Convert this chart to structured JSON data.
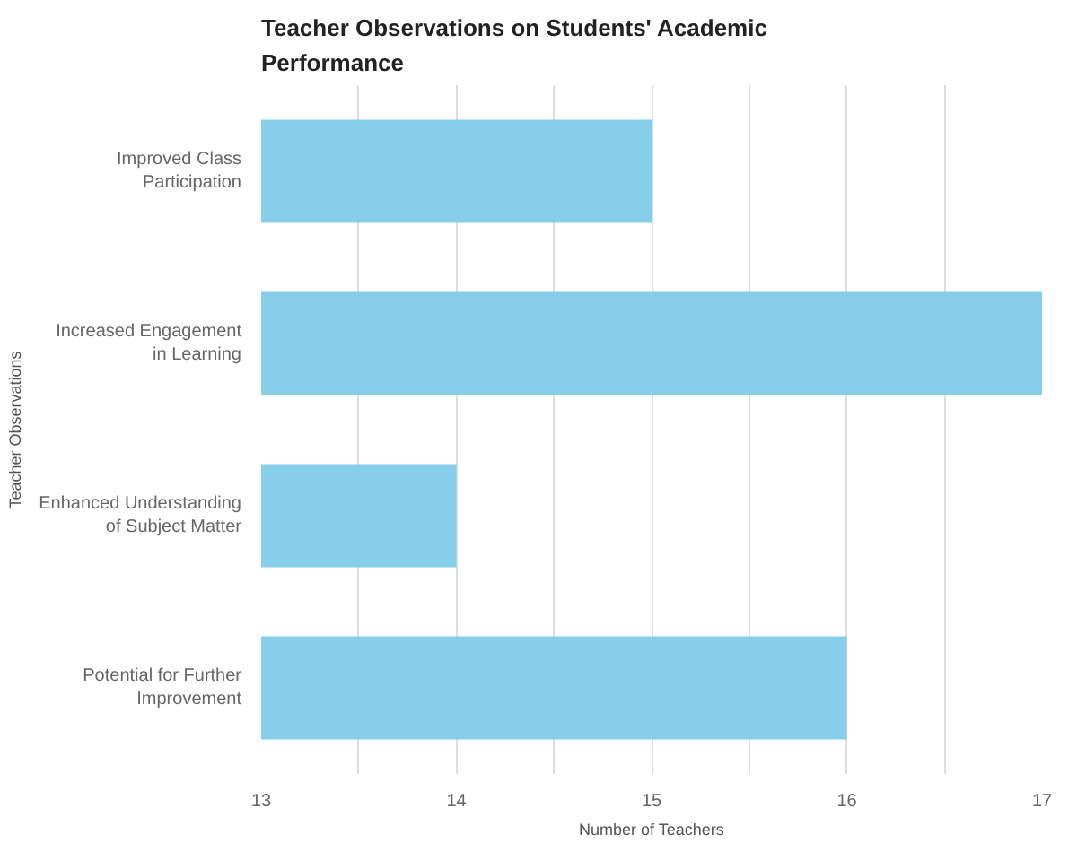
{
  "chart_data": {
    "type": "bar",
    "orientation": "horizontal",
    "title": "Teacher Observations on Students' Academic Performance",
    "xlabel": "Number of Teachers",
    "ylabel": "Teacher Observations",
    "categories": [
      "Improved Class Participation",
      "Increased Engagement in Learning",
      "Enhanced Understanding of Subject Matter",
      "Potential for Further Improvement"
    ],
    "values": [
      15,
      17,
      14,
      16
    ],
    "color": "#87ceeb",
    "xlim": [
      13,
      17
    ],
    "xticks": [
      13,
      {
        "value": 13.5,
        "label": null
      },
      14,
      {
        "value": 14.5,
        "label": null
      },
      15,
      {
        "value": 15.5,
        "label": null
      },
      16,
      {
        "value": 16.5,
        "label": null
      },
      17
    ],
    "grid": "x"
  }
}
